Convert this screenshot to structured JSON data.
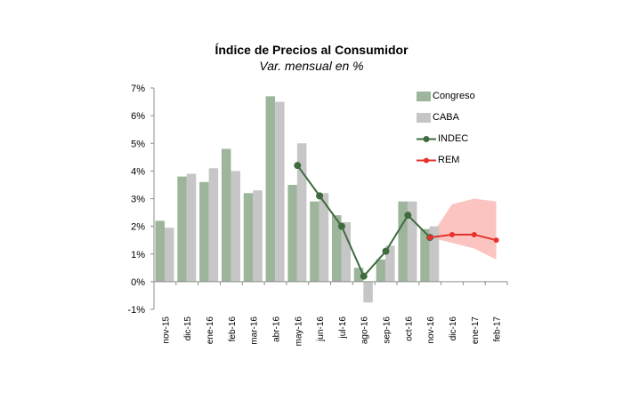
{
  "chart_data": {
    "type": "bar",
    "title": "Índice de Precios al Consumidor",
    "subtitle": "Var. mensual en %",
    "categories": [
      "nov-15",
      "dic-15",
      "ene-16",
      "feb-16",
      "mar-16",
      "abr-16",
      "may-16",
      "jun-16",
      "jul-16",
      "ago-16",
      "sep-16",
      "oct-16",
      "nov-16",
      "dic-16",
      "ene-17",
      "feb-17"
    ],
    "ylim": [
      -1,
      7
    ],
    "yticks": [
      "-1%",
      "0%",
      "1%",
      "2%",
      "3%",
      "4%",
      "5%",
      "6%",
      "7%"
    ],
    "series": [
      {
        "name": "Congreso",
        "kind": "bar",
        "color": "#9cb59b",
        "values": [
          2.2,
          3.8,
          3.6,
          4.8,
          3.2,
          6.7,
          3.5,
          2.9,
          2.4,
          0.5,
          0.8,
          2.9,
          1.9,
          null,
          null,
          null
        ]
      },
      {
        "name": "CABA",
        "kind": "bar",
        "color": "#c6c6c6",
        "values": [
          1.95,
          3.9,
          4.1,
          4.0,
          3.3,
          6.5,
          5.0,
          3.2,
          2.15,
          -0.75,
          1.3,
          2.9,
          2.0,
          null,
          null,
          null
        ]
      },
      {
        "name": "INDEC",
        "kind": "line",
        "color": "#3f6b3e",
        "values": [
          null,
          null,
          null,
          null,
          null,
          null,
          4.2,
          3.1,
          2.0,
          0.2,
          1.1,
          2.4,
          1.6,
          null,
          null,
          null
        ]
      },
      {
        "name": "REM",
        "kind": "line",
        "color": "#e5322d",
        "values": [
          null,
          null,
          null,
          null,
          null,
          null,
          null,
          null,
          null,
          null,
          null,
          null,
          1.6,
          1.7,
          1.7,
          1.5
        ]
      }
    ],
    "rem_band": {
      "color": "#fbc4c0",
      "upper": [
        null,
        null,
        null,
        null,
        null,
        null,
        null,
        null,
        null,
        null,
        null,
        null,
        1.6,
        2.8,
        3.0,
        2.9
      ],
      "lower": [
        null,
        null,
        null,
        null,
        null,
        null,
        null,
        null,
        null,
        null,
        null,
        null,
        1.6,
        1.4,
        1.2,
        0.8
      ]
    },
    "legend_position": "top-right",
    "grid": false
  }
}
